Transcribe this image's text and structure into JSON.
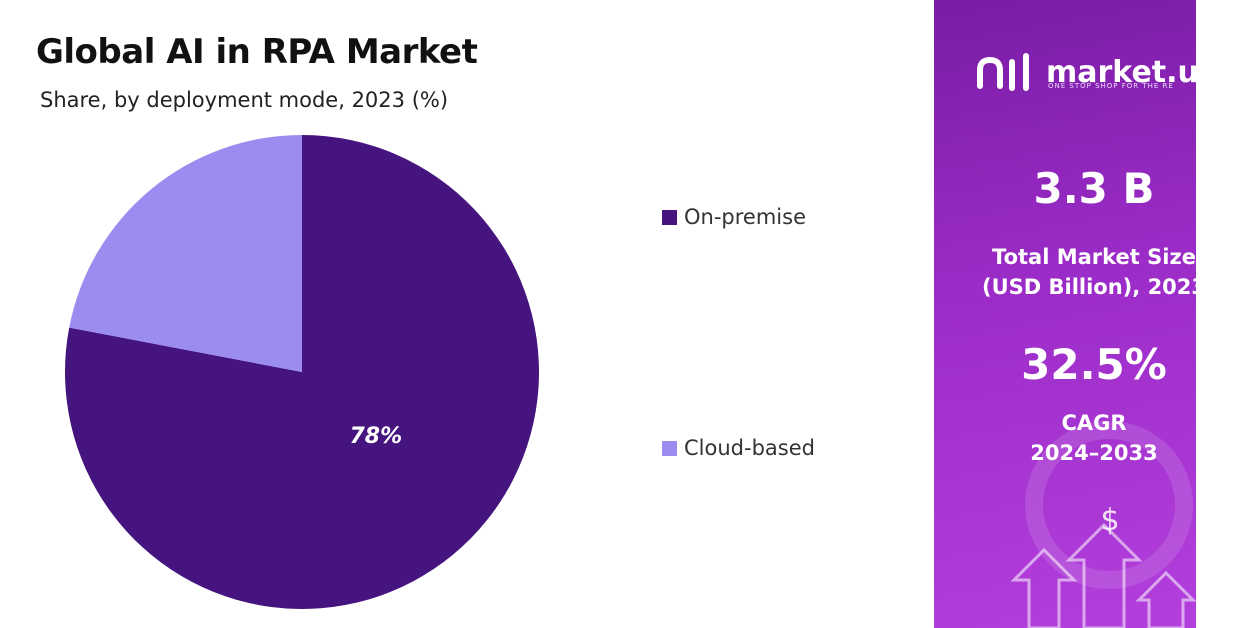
{
  "chart_data": {
    "type": "pie",
    "title": "Global AI in RPA Market",
    "subtitle": "Share, by deployment mode, 2023 (%)",
    "labels": [
      "On-premise",
      "Cloud-based"
    ],
    "values": [
      78,
      22
    ],
    "colors": [
      "#45147f",
      "#9b8cf0"
    ],
    "data_labels": [
      "78%",
      ""
    ],
    "legend_position": "right"
  },
  "sidebar": {
    "brand": "market.u",
    "tagline": "ONE STOP SHOP FOR THE RE",
    "market_size_value": "3.3 B",
    "market_size_label_1": "Total Market Size",
    "market_size_label_2": "(USD Billion), 2023",
    "cagr_value": "32.5%",
    "cagr_label_1": "CAGR",
    "cagr_label_2": "2024–2033",
    "currency_symbol": "$"
  }
}
